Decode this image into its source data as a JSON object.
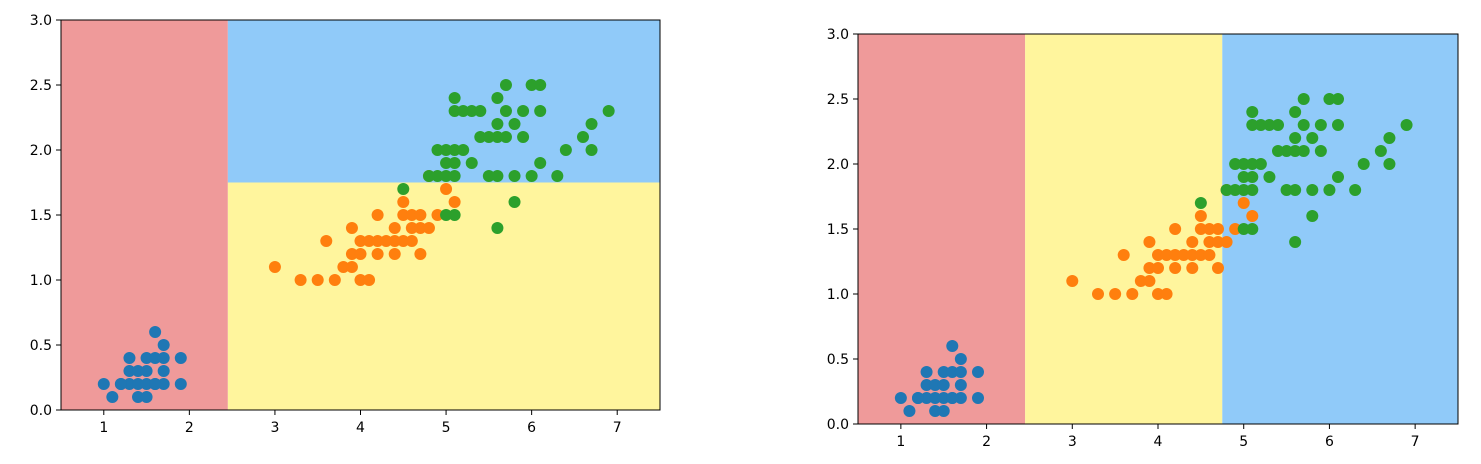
{
  "chart_data": [
    {
      "type": "scatter",
      "title": "",
      "xlabel": "",
      "ylabel": "",
      "xlim": [
        0.5,
        7.5
      ],
      "ylim": [
        0.0,
        3.0
      ],
      "xticks": [
        1,
        2,
        3,
        4,
        5,
        6,
        7
      ],
      "yticks": [
        0.0,
        0.5,
        1.0,
        1.5,
        2.0,
        2.5,
        3.0
      ],
      "tick_labels_x": [
        "1",
        "2",
        "3",
        "4",
        "5",
        "6",
        "7"
      ],
      "tick_labels_y": [
        "0.0",
        "0.5",
        "1.0",
        "1.5",
        "2.0",
        "2.5",
        "3.0"
      ],
      "grid": false,
      "decision_regions": [
        {
          "x": [
            0.5,
            2.45
          ],
          "y": [
            0.0,
            3.0
          ],
          "color": "#ef9a9a"
        },
        {
          "x": [
            2.45,
            7.5
          ],
          "y": [
            1.75,
            3.0
          ],
          "color": "#90caf9"
        },
        {
          "x": [
            2.45,
            7.5
          ],
          "y": [
            0.0,
            1.75
          ],
          "color": "#fff59d"
        }
      ],
      "series": [
        {
          "color": "#1f77b4",
          "points": [
            [
              1.0,
              0.2
            ],
            [
              1.1,
              0.1
            ],
            [
              1.2,
              0.2
            ],
            [
              1.3,
              0.2
            ],
            [
              1.3,
              0.3
            ],
            [
              1.3,
              0.4
            ],
            [
              1.4,
              0.1
            ],
            [
              1.4,
              0.2
            ],
            [
              1.4,
              0.3
            ],
            [
              1.5,
              0.1
            ],
            [
              1.5,
              0.2
            ],
            [
              1.5,
              0.3
            ],
            [
              1.5,
              0.4
            ],
            [
              1.6,
              0.2
            ],
            [
              1.6,
              0.4
            ],
            [
              1.6,
              0.6
            ],
            [
              1.7,
              0.2
            ],
            [
              1.7,
              0.3
            ],
            [
              1.7,
              0.4
            ],
            [
              1.7,
              0.5
            ],
            [
              1.9,
              0.2
            ],
            [
              1.9,
              0.4
            ],
            [
              1.2,
              0.2
            ],
            [
              1.6,
              0.2
            ]
          ]
        },
        {
          "color": "#ff7f0e",
          "points": [
            [
              3.0,
              1.1
            ],
            [
              3.3,
              1.0
            ],
            [
              3.5,
              1.0
            ],
            [
              3.6,
              1.3
            ],
            [
              3.7,
              1.0
            ],
            [
              3.8,
              1.1
            ],
            [
              3.9,
              1.1
            ],
            [
              3.9,
              1.2
            ],
            [
              3.9,
              1.4
            ],
            [
              4.0,
              1.0
            ],
            [
              4.0,
              1.2
            ],
            [
              4.0,
              1.3
            ],
            [
              4.1,
              1.0
            ],
            [
              4.1,
              1.3
            ],
            [
              4.2,
              1.2
            ],
            [
              4.2,
              1.3
            ],
            [
              4.2,
              1.5
            ],
            [
              4.3,
              1.3
            ],
            [
              4.4,
              1.2
            ],
            [
              4.4,
              1.3
            ],
            [
              4.4,
              1.4
            ],
            [
              4.5,
              1.3
            ],
            [
              4.5,
              1.5
            ],
            [
              4.5,
              1.6
            ],
            [
              4.6,
              1.3
            ],
            [
              4.6,
              1.4
            ],
            [
              4.6,
              1.5
            ],
            [
              4.7,
              1.2
            ],
            [
              4.7,
              1.4
            ],
            [
              4.7,
              1.5
            ],
            [
              4.8,
              1.4
            ],
            [
              4.8,
              1.8
            ],
            [
              4.9,
              1.5
            ],
            [
              5.0,
              1.7
            ],
            [
              5.1,
              1.6
            ]
          ]
        },
        {
          "color": "#2ca02c",
          "points": [
            [
              4.5,
              1.7
            ],
            [
              4.8,
              1.8
            ],
            [
              4.9,
              1.8
            ],
            [
              4.9,
              2.0
            ],
            [
              5.0,
              1.5
            ],
            [
              5.0,
              1.8
            ],
            [
              5.0,
              1.9
            ],
            [
              5.0,
              2.0
            ],
            [
              5.1,
              1.5
            ],
            [
              5.1,
              1.8
            ],
            [
              5.1,
              1.9
            ],
            [
              5.1,
              2.0
            ],
            [
              5.1,
              2.3
            ],
            [
              5.1,
              2.4
            ],
            [
              5.2,
              2.0
            ],
            [
              5.2,
              2.3
            ],
            [
              5.3,
              1.9
            ],
            [
              5.3,
              2.3
            ],
            [
              5.4,
              2.1
            ],
            [
              5.4,
              2.3
            ],
            [
              5.5,
              1.8
            ],
            [
              5.5,
              2.1
            ],
            [
              5.6,
              1.4
            ],
            [
              5.6,
              1.8
            ],
            [
              5.6,
              2.1
            ],
            [
              5.6,
              2.2
            ],
            [
              5.6,
              2.4
            ],
            [
              5.7,
              2.1
            ],
            [
              5.7,
              2.3
            ],
            [
              5.7,
              2.5
            ],
            [
              5.8,
              1.6
            ],
            [
              5.8,
              1.8
            ],
            [
              5.8,
              2.2
            ],
            [
              5.9,
              2.1
            ],
            [
              5.9,
              2.3
            ],
            [
              6.0,
              1.8
            ],
            [
              6.0,
              2.5
            ],
            [
              6.1,
              1.9
            ],
            [
              6.1,
              2.3
            ],
            [
              6.1,
              2.5
            ],
            [
              6.3,
              1.8
            ],
            [
              6.4,
              2.0
            ],
            [
              6.6,
              2.1
            ],
            [
              6.7,
              2.0
            ],
            [
              6.7,
              2.2
            ],
            [
              6.9,
              2.3
            ]
          ]
        }
      ]
    },
    {
      "type": "scatter",
      "title": "",
      "xlabel": "",
      "ylabel": "",
      "xlim": [
        0.5,
        7.5
      ],
      "ylim": [
        0.0,
        3.0
      ],
      "xticks": [
        1,
        2,
        3,
        4,
        5,
        6,
        7
      ],
      "yticks": [
        0.0,
        0.5,
        1.0,
        1.5,
        2.0,
        2.5,
        3.0
      ],
      "tick_labels_x": [
        "1",
        "2",
        "3",
        "4",
        "5",
        "6",
        "7"
      ],
      "tick_labels_y": [
        "0.0",
        "0.5",
        "1.0",
        "1.5",
        "2.0",
        "2.5",
        "3.0"
      ],
      "grid": false,
      "decision_regions": [
        {
          "x": [
            0.5,
            2.45
          ],
          "y": [
            0.0,
            3.0
          ],
          "color": "#ef9a9a"
        },
        {
          "x": [
            2.45,
            4.75
          ],
          "y": [
            0.0,
            3.0
          ],
          "color": "#fff59d"
        },
        {
          "x": [
            4.75,
            7.5
          ],
          "y": [
            0.0,
            3.0
          ],
          "color": "#90caf9"
        }
      ],
      "series": [
        {
          "color": "#1f77b4",
          "points": [
            [
              1.0,
              0.2
            ],
            [
              1.1,
              0.1
            ],
            [
              1.2,
              0.2
            ],
            [
              1.3,
              0.2
            ],
            [
              1.3,
              0.3
            ],
            [
              1.3,
              0.4
            ],
            [
              1.4,
              0.1
            ],
            [
              1.4,
              0.2
            ],
            [
              1.4,
              0.3
            ],
            [
              1.5,
              0.1
            ],
            [
              1.5,
              0.2
            ],
            [
              1.5,
              0.3
            ],
            [
              1.5,
              0.4
            ],
            [
              1.6,
              0.2
            ],
            [
              1.6,
              0.4
            ],
            [
              1.6,
              0.6
            ],
            [
              1.7,
              0.2
            ],
            [
              1.7,
              0.3
            ],
            [
              1.7,
              0.4
            ],
            [
              1.7,
              0.5
            ],
            [
              1.9,
              0.2
            ],
            [
              1.9,
              0.4
            ],
            [
              1.2,
              0.2
            ],
            [
              1.6,
              0.2
            ]
          ]
        },
        {
          "color": "#ff7f0e",
          "points": [
            [
              3.0,
              1.1
            ],
            [
              3.3,
              1.0
            ],
            [
              3.5,
              1.0
            ],
            [
              3.6,
              1.3
            ],
            [
              3.7,
              1.0
            ],
            [
              3.8,
              1.1
            ],
            [
              3.9,
              1.1
            ],
            [
              3.9,
              1.2
            ],
            [
              3.9,
              1.4
            ],
            [
              4.0,
              1.0
            ],
            [
              4.0,
              1.2
            ],
            [
              4.0,
              1.3
            ],
            [
              4.1,
              1.0
            ],
            [
              4.1,
              1.3
            ],
            [
              4.2,
              1.2
            ],
            [
              4.2,
              1.3
            ],
            [
              4.2,
              1.5
            ],
            [
              4.3,
              1.3
            ],
            [
              4.4,
              1.2
            ],
            [
              4.4,
              1.3
            ],
            [
              4.4,
              1.4
            ],
            [
              4.5,
              1.3
            ],
            [
              4.5,
              1.5
            ],
            [
              4.5,
              1.6
            ],
            [
              4.6,
              1.3
            ],
            [
              4.6,
              1.4
            ],
            [
              4.6,
              1.5
            ],
            [
              4.7,
              1.2
            ],
            [
              4.7,
              1.4
            ],
            [
              4.7,
              1.5
            ],
            [
              4.8,
              1.4
            ],
            [
              4.8,
              1.8
            ],
            [
              4.9,
              1.5
            ],
            [
              5.0,
              1.7
            ],
            [
              5.1,
              1.6
            ]
          ]
        },
        {
          "color": "#2ca02c",
          "points": [
            [
              4.5,
              1.7
            ],
            [
              4.8,
              1.8
            ],
            [
              4.9,
              1.8
            ],
            [
              4.9,
              2.0
            ],
            [
              5.0,
              1.5
            ],
            [
              5.0,
              1.8
            ],
            [
              5.0,
              1.9
            ],
            [
              5.0,
              2.0
            ],
            [
              5.1,
              1.5
            ],
            [
              5.1,
              1.8
            ],
            [
              5.1,
              1.9
            ],
            [
              5.1,
              2.0
            ],
            [
              5.1,
              2.3
            ],
            [
              5.1,
              2.4
            ],
            [
              5.2,
              2.0
            ],
            [
              5.2,
              2.3
            ],
            [
              5.3,
              1.9
            ],
            [
              5.3,
              2.3
            ],
            [
              5.4,
              2.1
            ],
            [
              5.4,
              2.3
            ],
            [
              5.5,
              1.8
            ],
            [
              5.5,
              2.1
            ],
            [
              5.6,
              1.4
            ],
            [
              5.6,
              1.8
            ],
            [
              5.6,
              2.1
            ],
            [
              5.6,
              2.2
            ],
            [
              5.6,
              2.4
            ],
            [
              5.7,
              2.1
            ],
            [
              5.7,
              2.3
            ],
            [
              5.7,
              2.5
            ],
            [
              5.8,
              1.6
            ],
            [
              5.8,
              1.8
            ],
            [
              5.8,
              2.2
            ],
            [
              5.9,
              2.1
            ],
            [
              5.9,
              2.3
            ],
            [
              6.0,
              1.8
            ],
            [
              6.0,
              2.5
            ],
            [
              6.1,
              1.9
            ],
            [
              6.1,
              2.3
            ],
            [
              6.1,
              2.5
            ],
            [
              6.3,
              1.8
            ],
            [
              6.4,
              2.0
            ],
            [
              6.6,
              2.1
            ],
            [
              6.7,
              2.0
            ],
            [
              6.7,
              2.2
            ],
            [
              6.9,
              2.3
            ]
          ]
        }
      ]
    }
  ]
}
